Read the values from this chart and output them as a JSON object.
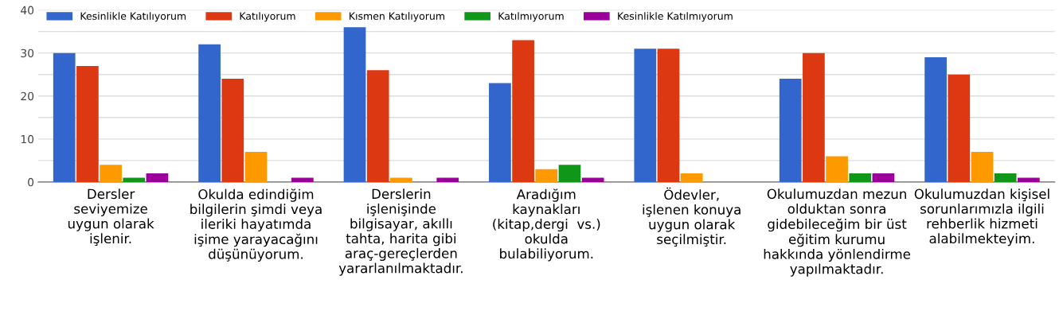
{
  "chart_data": {
    "type": "bar",
    "categories": [
      "Dersler\nseviyemize\nuygun olarak\nişlenir.",
      "Okulda edindiğim\nbilgilerin şimdi veya\nileriki hayatımda\nişime yarayacağını\ndüşünüyorum.",
      "Derslerin\nişlenişinde\nbilgisayar, akıllı\ntahta, harita gibi\naraç-gereçlerden\nyararlanılmaktadır.",
      "Aradığım\nkaynakları\n(kitap,dergi  vs.)\nokulda\nbulabiliyorum.",
      "Ödevler,\nişlenen konuya\nuygun olarak\nseçilmiştir.",
      "Okulumuzdan mezun\nolduktan sonra\ngidebileceğim bir üst\neğitim kurumu\nhakkında yönlendirme\nyapılmaktadır.",
      "Okulumuzdan kişisel\nsorunlarımızla ilgili\nrehberlik hizmeti\nalabilmekteyim."
    ],
    "series": [
      {
        "name": "Kesinlikle Katılıyorum",
        "color": "#3366cc",
        "values": [
          30,
          32,
          36,
          23,
          31,
          24,
          29
        ]
      },
      {
        "name": "Katılıyorum",
        "color": "#dc3912",
        "values": [
          27,
          24,
          26,
          33,
          31,
          30,
          25
        ]
      },
      {
        "name": "Kısmen Katılıyorum",
        "color": "#ff9900",
        "values": [
          4,
          7,
          1,
          3,
          2,
          6,
          7
        ]
      },
      {
        "name": "Katılmıyorum",
        "color": "#109618",
        "values": [
          1,
          0,
          0,
          4,
          0,
          2,
          2
        ]
      },
      {
        "name": "Kesinlikle Katılmıyorum",
        "color": "#990099",
        "values": [
          2,
          1,
          1,
          1,
          0,
          2,
          1
        ]
      }
    ],
    "ylim": [
      0,
      40
    ],
    "yticks": [
      0,
      {
        "value": 5,
        "label": null
      },
      10,
      {
        "value": 15,
        "label": null
      },
      20,
      {
        "value": 25,
        "label": null
      },
      30,
      {
        "value": 35,
        "label": null
      },
      40
    ],
    "grid": "y",
    "legend": "top left"
  }
}
